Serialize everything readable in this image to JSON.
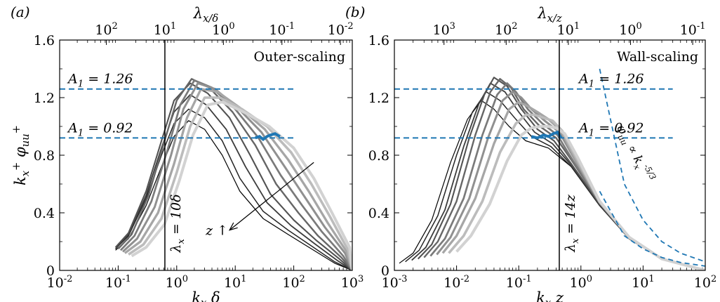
{
  "chart_data": [
    {
      "type": "line",
      "panel_label": "(a)",
      "xlabel": "k_x δ",
      "top_xlabel": "λ_x/δ",
      "ylabel": "k_x^+ φ_uu^+",
      "xscale": "log",
      "xlim": [
        0.01,
        1000
      ],
      "ylim": [
        0,
        1.6
      ],
      "xticks": [
        0.01,
        0.1,
        1,
        10,
        100,
        1000
      ],
      "xtick_labels": [
        [
          "10",
          "-2"
        ],
        [
          "10",
          "-1"
        ],
        [
          "10",
          "0"
        ],
        [
          "10",
          "1"
        ],
        [
          "10",
          "2"
        ],
        [
          "10",
          "3"
        ]
      ],
      "yticks": [
        0,
        0.4,
        0.8,
        1.2,
        1.6
      ],
      "ytick_labels": [
        "0",
        "0.4",
        "0.8",
        "1.2",
        "1.6"
      ],
      "top_ticks_lambda": [
        100,
        10,
        1,
        0.1,
        0.01
      ],
      "top_tick_labels": [
        [
          "10",
          "2"
        ],
        [
          "10",
          "1"
        ],
        [
          "10",
          "0"
        ],
        [
          "10",
          "-1"
        ],
        [
          "10",
          "-2"
        ]
      ],
      "corner_text": "Outer-scaling",
      "vline": {
        "x": 0.628,
        "label": "λ_x = 10δ"
      },
      "hlines": [
        {
          "y": 1.26,
          "label": "A_1 = 1.26",
          "x_range": [
            0.01,
            100
          ]
        },
        {
          "y": 0.92,
          "label": "A_1 = 0.92",
          "x_range": [
            0.01,
            100
          ]
        }
      ],
      "arrow_label": "z ↑",
      "arrow": {
        "from": [
          220,
          0.75
        ],
        "to": [
          8,
          0.28
        ]
      },
      "plateau_highlight": {
        "x": [
          22,
          26,
          30,
          35,
          40,
          48,
          58
        ],
        "y": [
          0.92,
          0.93,
          0.91,
          0.93,
          0.94,
          0.95,
          0.93
        ]
      },
      "series": [
        {
          "x": [
            0.09,
            0.15,
            0.3,
            0.55,
            0.9,
            1.6,
            3,
            6,
            12,
            30,
            80,
            200,
            500,
            1000
          ],
          "y": [
            0.14,
            0.22,
            0.45,
            0.72,
            0.93,
            1.04,
            0.98,
            0.8,
            0.55,
            0.36,
            0.25,
            0.15,
            0.05,
            0.0
          ]
        },
        {
          "x": [
            0.09,
            0.15,
            0.3,
            0.55,
            0.9,
            1.6,
            3,
            6,
            12,
            30,
            80,
            200,
            500,
            1000
          ],
          "y": [
            0.15,
            0.24,
            0.5,
            0.8,
            1.02,
            1.12,
            1.06,
            0.9,
            0.64,
            0.41,
            0.28,
            0.17,
            0.06,
            0.0
          ]
        },
        {
          "x": [
            0.09,
            0.15,
            0.3,
            0.55,
            0.9,
            1.7,
            3.2,
            7,
            15,
            35,
            90,
            220,
            550,
            1000
          ],
          "y": [
            0.15,
            0.25,
            0.52,
            0.85,
            1.1,
            1.22,
            1.15,
            0.98,
            0.72,
            0.47,
            0.31,
            0.19,
            0.07,
            0.0
          ]
        },
        {
          "x": [
            0.09,
            0.15,
            0.3,
            0.55,
            0.9,
            1.7,
            3.4,
            8,
            18,
            40,
            100,
            240,
            600,
            1000
          ],
          "y": [
            0.16,
            0.26,
            0.55,
            0.9,
            1.18,
            1.3,
            1.23,
            1.06,
            0.8,
            0.53,
            0.35,
            0.21,
            0.08,
            0.0
          ]
        },
        {
          "x": [
            0.1,
            0.17,
            0.33,
            0.6,
            1.0,
            1.8,
            3.6,
            9,
            22,
            50,
            120,
            260,
            650,
            1000
          ],
          "y": [
            0.15,
            0.25,
            0.52,
            0.88,
            1.18,
            1.33,
            1.27,
            1.1,
            0.87,
            0.6,
            0.4,
            0.24,
            0.09,
            0.0
          ]
        },
        {
          "x": [
            0.11,
            0.19,
            0.37,
            0.7,
            1.15,
            2.0,
            4,
            10,
            25,
            60,
            140,
            300,
            700,
            1000
          ],
          "y": [
            0.14,
            0.24,
            0.48,
            0.84,
            1.15,
            1.32,
            1.27,
            1.12,
            0.92,
            0.66,
            0.45,
            0.27,
            0.1,
            0.0
          ]
        },
        {
          "x": [
            0.12,
            0.21,
            0.42,
            0.8,
            1.3,
            2.3,
            4.5,
            11,
            28,
            70,
            160,
            340,
            750,
            1000
          ],
          "y": [
            0.13,
            0.22,
            0.44,
            0.8,
            1.12,
            1.3,
            1.26,
            1.13,
            0.96,
            0.72,
            0.5,
            0.3,
            0.12,
            0.0
          ]
        },
        {
          "x": [
            0.13,
            0.24,
            0.48,
            0.9,
            1.5,
            2.6,
            5,
            12,
            32,
            80,
            180,
            380,
            800,
            1000
          ],
          "y": [
            0.12,
            0.2,
            0.4,
            0.74,
            1.06,
            1.26,
            1.24,
            1.13,
            0.98,
            0.77,
            0.55,
            0.33,
            0.13,
            0.0
          ]
        },
        {
          "x": [
            0.15,
            0.27,
            0.55,
            1.0,
            1.7,
            3.0,
            5.5,
            13,
            35,
            90,
            200,
            420,
            850,
            1000
          ],
          "y": [
            0.11,
            0.18,
            0.36,
            0.68,
            1.0,
            1.2,
            1.2,
            1.12,
            1.0,
            0.82,
            0.6,
            0.37,
            0.14,
            0.0
          ]
        },
        {
          "x": [
            0.17,
            0.3,
            0.62,
            1.1,
            1.9,
            3.4,
            6,
            14,
            38,
            100,
            220,
            450,
            900,
            1000
          ],
          "y": [
            0.1,
            0.16,
            0.32,
            0.62,
            0.94,
            1.15,
            1.17,
            1.1,
            1.0,
            0.85,
            0.64,
            0.4,
            0.16,
            0.0
          ]
        }
      ]
    },
    {
      "type": "line",
      "panel_label": "(b)",
      "xlabel": "k_x z",
      "top_xlabel": "λ_x/z",
      "xscale": "log",
      "xlim": [
        0.001,
        100
      ],
      "ylim": [
        0,
        1.6
      ],
      "xticks": [
        0.001,
        0.01,
        0.1,
        1,
        10,
        100
      ],
      "xtick_labels": [
        [
          "10",
          "-3"
        ],
        [
          "10",
          "-2"
        ],
        [
          "10",
          "-1"
        ],
        [
          "10",
          "0"
        ],
        [
          "10",
          "1"
        ],
        [
          "10",
          "2"
        ]
      ],
      "yticks": [
        0,
        0.4,
        0.8,
        1.2,
        1.6
      ],
      "ytick_labels": [
        "0",
        "0.4",
        "0.8",
        "1.2",
        "1.6"
      ],
      "top_ticks_lambda": [
        1000,
        100,
        10,
        1,
        0.1
      ],
      "top_tick_labels": [
        [
          "10",
          "3"
        ],
        [
          "10",
          "2"
        ],
        [
          "10",
          "1"
        ],
        [
          "10",
          "0"
        ],
        [
          "10",
          "-1"
        ]
      ],
      "corner_text": "Wall-scaling",
      "vline": {
        "x": 0.449,
        "label": "λ_x = 14z"
      },
      "hlines": [
        {
          "y": 1.26,
          "label": "A_1 = 1.26",
          "x_range": [
            0.001,
            30
          ]
        },
        {
          "y": 0.92,
          "label": "A_1 = 0.92",
          "x_range": [
            0.001,
            30
          ]
        }
      ],
      "powerlaw_label": "φ_uu ∝ k_x^{-5/3}",
      "powerlaw_lines": [
        {
          "x": [
            2,
            5,
            10,
            20,
            40,
            100
          ],
          "y": [
            1.4,
            0.6,
            0.35,
            0.2,
            0.12,
            0.06
          ]
        },
        {
          "x": [
            2,
            5,
            10,
            20,
            40,
            100
          ],
          "y": [
            0.55,
            0.24,
            0.15,
            0.09,
            0.055,
            0.03
          ]
        }
      ],
      "plateau_highlight": {
        "x": [
          0.16,
          0.2,
          0.25,
          0.3,
          0.36,
          0.42,
          0.48
        ],
        "y": [
          0.93,
          0.92,
          0.94,
          0.93,
          0.95,
          0.96,
          0.92
        ]
      },
      "series": [
        {
          "x": [
            0.0012,
            0.002,
            0.004,
            0.008,
            0.015,
            0.025,
            0.04,
            0.07,
            0.13,
            0.3,
            0.7,
            2,
            6,
            20,
            100
          ],
          "y": [
            0.05,
            0.12,
            0.35,
            0.75,
            1.05,
            1.18,
            1.12,
            1.0,
            0.9,
            0.85,
            0.72,
            0.45,
            0.22,
            0.08,
            0.0
          ]
        },
        {
          "x": [
            0.0015,
            0.0025,
            0.005,
            0.01,
            0.018,
            0.03,
            0.05,
            0.09,
            0.16,
            0.33,
            0.7,
            2,
            6,
            20,
            100
          ],
          "y": [
            0.06,
            0.14,
            0.38,
            0.8,
            1.1,
            1.24,
            1.18,
            1.05,
            0.93,
            0.86,
            0.72,
            0.45,
            0.22,
            0.08,
            0.0
          ]
        },
        {
          "x": [
            0.0019,
            0.0032,
            0.0065,
            0.013,
            0.023,
            0.035,
            0.06,
            0.1,
            0.18,
            0.35,
            0.7,
            2,
            6,
            20,
            100
          ],
          "y": [
            0.07,
            0.16,
            0.42,
            0.86,
            1.16,
            1.3,
            1.24,
            1.1,
            0.96,
            0.88,
            0.73,
            0.46,
            0.22,
            0.08,
            0.0
          ]
        },
        {
          "x": [
            0.0024,
            0.004,
            0.008,
            0.016,
            0.028,
            0.04,
            0.065,
            0.11,
            0.2,
            0.37,
            0.7,
            2,
            6,
            20,
            100
          ],
          "y": [
            0.08,
            0.18,
            0.46,
            0.92,
            1.22,
            1.34,
            1.28,
            1.12,
            0.98,
            0.9,
            0.74,
            0.46,
            0.22,
            0.08,
            0.0
          ]
        },
        {
          "x": [
            0.003,
            0.005,
            0.01,
            0.02,
            0.035,
            0.05,
            0.075,
            0.12,
            0.22,
            0.4,
            0.75,
            2,
            6,
            20,
            100
          ],
          "y": [
            0.09,
            0.2,
            0.48,
            0.94,
            1.24,
            1.33,
            1.27,
            1.12,
            1.0,
            0.92,
            0.75,
            0.47,
            0.23,
            0.08,
            0.0
          ]
        },
        {
          "x": [
            0.0038,
            0.0065,
            0.013,
            0.026,
            0.045,
            0.065,
            0.09,
            0.14,
            0.24,
            0.42,
            0.75,
            2,
            6,
            20,
            100
          ],
          "y": [
            0.1,
            0.22,
            0.5,
            0.94,
            1.22,
            1.3,
            1.24,
            1.12,
            1.02,
            0.94,
            0.76,
            0.47,
            0.23,
            0.08,
            0.0
          ]
        },
        {
          "x": [
            0.0048,
            0.008,
            0.016,
            0.032,
            0.055,
            0.08,
            0.11,
            0.16,
            0.26,
            0.45,
            0.8,
            2,
            6,
            20,
            100
          ],
          "y": [
            0.11,
            0.23,
            0.5,
            0.92,
            1.18,
            1.24,
            1.2,
            1.12,
            1.04,
            0.96,
            0.77,
            0.47,
            0.23,
            0.08,
            0.0
          ]
        },
        {
          "x": [
            0.006,
            0.01,
            0.02,
            0.04,
            0.07,
            0.1,
            0.14,
            0.2,
            0.3,
            0.48,
            0.8,
            2,
            6,
            20,
            100
          ],
          "y": [
            0.12,
            0.24,
            0.5,
            0.88,
            1.12,
            1.17,
            1.14,
            1.1,
            1.05,
            0.97,
            0.78,
            0.48,
            0.23,
            0.08,
            0.0
          ]
        },
        {
          "x": [
            0.0075,
            0.013,
            0.026,
            0.05,
            0.09,
            0.13,
            0.18,
            0.25,
            0.35,
            0.5,
            0.85,
            2,
            6,
            20,
            100
          ],
          "y": [
            0.12,
            0.24,
            0.48,
            0.82,
            1.02,
            1.08,
            1.08,
            1.06,
            1.04,
            0.97,
            0.78,
            0.48,
            0.23,
            0.08,
            0.0
          ]
        },
        {
          "x": [
            0.01,
            0.017,
            0.034,
            0.065,
            0.11,
            0.16,
            0.22,
            0.3,
            0.4,
            0.55,
            0.9,
            2,
            6,
            20,
            100
          ],
          "y": [
            0.13,
            0.24,
            0.46,
            0.76,
            0.94,
            0.99,
            1.0,
            1.0,
            0.99,
            0.95,
            0.78,
            0.48,
            0.23,
            0.08,
            0.0
          ]
        }
      ]
    }
  ],
  "style": {
    "ref_line_color": "#1f77b4",
    "highlight_color": "#1f77b4",
    "annotation_color": "#1f4f9a",
    "series_colors": [
      "#000000",
      "#252525",
      "#3c3c3c",
      "#525252",
      "#666666",
      "#7a7a7a",
      "#909090",
      "#a6a6a6",
      "#bcbcbc",
      "#d2d2d2"
    ],
    "series_widths": [
      1.2,
      1.5,
      1.8,
      2.1,
      2.4,
      2.7,
      3.0,
      3.3,
      3.6,
      4.0
    ]
  }
}
